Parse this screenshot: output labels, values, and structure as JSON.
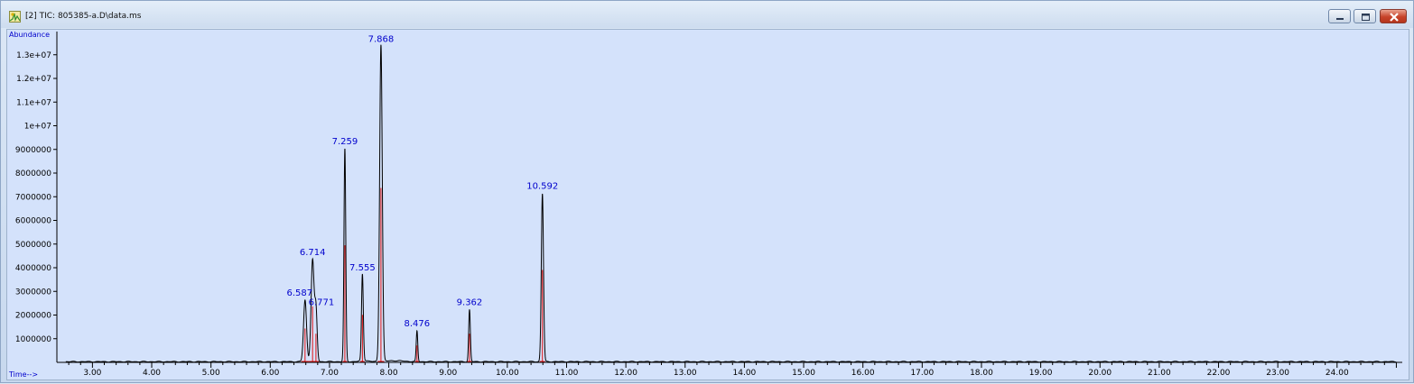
{
  "window": {
    "title": "[2] TIC: 805385-a.D\\data.ms",
    "icon": "chromatogram-app-icon",
    "controls": [
      "minimize-icon",
      "restore-icon",
      "close-icon"
    ]
  },
  "chart_data": {
    "type": "line",
    "ylabel": "Abundance",
    "xlabel": "Time-->",
    "xlim": [
      2.4,
      25.1
    ],
    "ylim": [
      0,
      13600000
    ],
    "x_ticks": [
      "3.00",
      "4.00",
      "5.00",
      "6.00",
      "7.00",
      "8.00",
      "9.00",
      "10.00",
      "11.00",
      "12.00",
      "13.00",
      "14.00",
      "15.00",
      "16.00",
      "17.00",
      "18.00",
      "19.00",
      "20.00",
      "21.00",
      "22.00",
      "23.00",
      "24.00"
    ],
    "y_ticks": [
      "1000000",
      "2000000",
      "3000000",
      "4000000",
      "5000000",
      "6000000",
      "7000000",
      "8000000",
      "9000000",
      "1e+07",
      "1.1e+07",
      "1.2e+07",
      "1.3e+07"
    ],
    "colors": {
      "trace": "#000000",
      "peak_label": "#0000cc",
      "integration": "#e01010",
      "axis": "#000000",
      "background": "#d4e2fb"
    },
    "baseline": 30000,
    "peaks": [
      {
        "rt": 6.587,
        "label": "6.587",
        "height": 2600000,
        "width": 0.025
      },
      {
        "rt": 6.714,
        "label": "6.714",
        "height": 4300000,
        "width": 0.025
      },
      {
        "rt": 6.771,
        "label": "6.771",
        "height": 2200000,
        "width": 0.02
      },
      {
        "rt": 7.259,
        "label": "7.259",
        "height": 9000000,
        "width": 0.015
      },
      {
        "rt": 7.555,
        "label": "7.555",
        "height": 3650000,
        "width": 0.015
      },
      {
        "rt": 7.868,
        "label": "7.868",
        "height": 13400000,
        "width": 0.022
      },
      {
        "rt": 8.476,
        "label": "8.476",
        "height": 1300000,
        "width": 0.013
      },
      {
        "rt": 9.362,
        "label": "9.362",
        "height": 2200000,
        "width": 0.014
      },
      {
        "rt": 10.592,
        "label": "10.592",
        "height": 7100000,
        "width": 0.018
      }
    ]
  }
}
